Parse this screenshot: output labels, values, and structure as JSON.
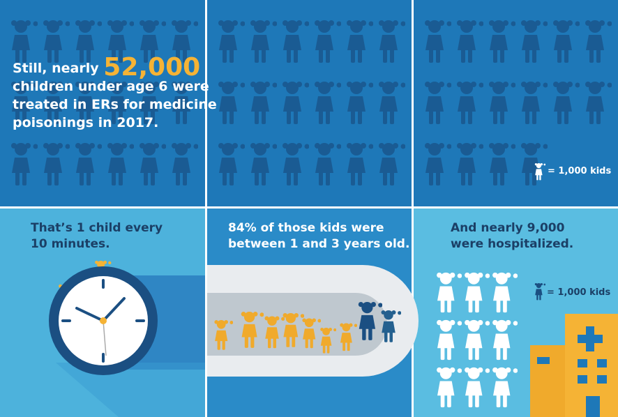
{
  "top": {
    "lead": "Still, nearly",
    "highlight": "52,000",
    "lines": [
      "children under age 6 were",
      "treated in ERs for medicine",
      "poisonings in 2017."
    ],
    "legend": "= 1,000 kids"
  },
  "bottom": {
    "panels": [
      {
        "lines": [
          "That’s 1 child every",
          "10 minutes."
        ]
      },
      {
        "lines": [
          "84% of those kids were",
          "between 1 and 3 years old."
        ]
      },
      {
        "lines": [
          "And nearly 9,000",
          "were hospitalized."
        ],
        "legend": "= 1,000 kids"
      }
    ]
  }
}
